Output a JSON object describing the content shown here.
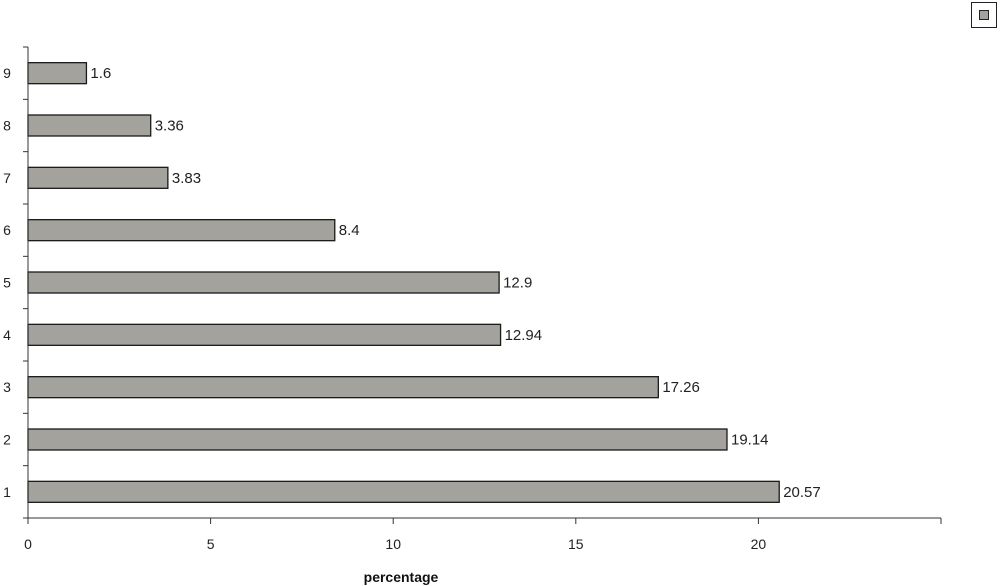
{
  "chart_data": {
    "type": "bar",
    "orientation": "horizontal",
    "categories": [
      "1",
      "2",
      "3",
      "4",
      "5",
      "6",
      "7",
      "8",
      "9"
    ],
    "values": [
      20.57,
      19.14,
      17.26,
      12.94,
      12.9,
      8.4,
      3.83,
      3.36,
      1.6
    ],
    "value_labels": [
      "20.57",
      "19.14",
      "17.26",
      "12.94",
      "12.9",
      "8.4",
      "3.83",
      "3.36",
      "1.6"
    ],
    "xlabel": "percentage",
    "ylabel": "",
    "xlim": [
      0,
      25
    ],
    "x_ticks": [
      "0",
      "5",
      "10",
      "15",
      "20"
    ],
    "x_tick_values": [
      0,
      5,
      10,
      15,
      20
    ],
    "grid": false,
    "legend_position": "top-right",
    "bar_color": "#a3a29d",
    "bar_edge_color": "#1a1a1a",
    "axis_color": "#333333"
  }
}
